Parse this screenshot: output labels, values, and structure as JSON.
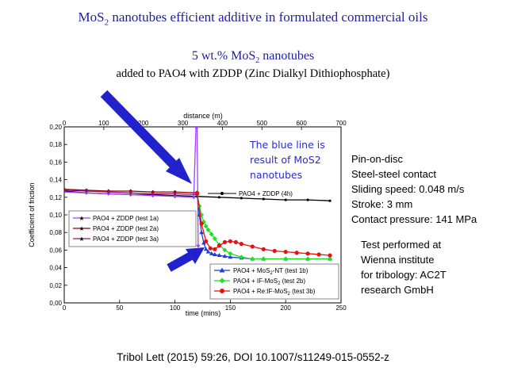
{
  "slide": {
    "title_prefix": "MoS",
    "title_sub": "2",
    "title_suffix": " nanotubes efficient additive in formulated commercial oils",
    "subtitle1_prefix": "5 wt.% MoS",
    "subtitle1_sub": "2",
    "subtitle1_suffix": " nanotubes",
    "subtitle2": "added to PAO4 with ZDDP (Zinc Dialkyl Dithiophosphate)",
    "conditions": [
      "Pin-on-disc",
      "Steel-steel contact",
      "Sliding speed: 0.048 m/s",
      "Stroke: 3 mm",
      "Contact pressure: 141 MPa"
    ],
    "institute": [
      "Test performed at",
      "Wienna institute",
      "for tribology: AC2T",
      "research GmbH"
    ],
    "citation": "Tribol Lett (2015) 59:26, DOI 10.1007/s11249-015-0552-z",
    "annotation": [
      "The blue line is",
      "result of MoS2",
      "nanotubes"
    ]
  },
  "colors": {
    "title": "#1f1f9a",
    "arrow": "#2222cc",
    "test1a": "#a040ff",
    "test2a": "#8b0000",
    "test3a": "#8b1a6b",
    "mos2_nt": "#1a3fd6",
    "if_mos2": "#22e022",
    "re_if_mos2": "#e81010",
    "pao4_zddp_4h": "#000000"
  },
  "chart_data": {
    "type": "line",
    "xlabel": "time (mins)",
    "x2label": "distance (m)",
    "ylabel": "Coefficient of friction",
    "xlim": [
      0,
      250
    ],
    "x2lim": [
      0,
      700
    ],
    "ylim": [
      0.0,
      0.2
    ],
    "x_ticks": [
      "0",
      "50",
      "100",
      "150",
      "200",
      "250"
    ],
    "x2_ticks": [
      "0",
      "100",
      "200",
      "300",
      "400",
      "500",
      "600",
      "700"
    ],
    "y_ticks": [
      "0,00",
      "0,02",
      "0,04",
      "0,06",
      "0,08",
      "0,10",
      "0,12",
      "0,14",
      "0,16",
      "0,18",
      "0,20"
    ],
    "legend_top": [
      {
        "name": "PAO4 + ZDDP (test 1a)",
        "key": "test1a"
      },
      {
        "name": "PAO4 + ZDDP (test 2a)",
        "key": "test2a"
      },
      {
        "name": "PAO4 + ZDDP (test 3a)",
        "key": "test3a"
      }
    ],
    "legend_4h": {
      "name": "PAO4 + ZDDP (4h)",
      "key": "pao4_zddp_4h"
    },
    "legend_bottom": [
      {
        "name_prefix": "PAO4 + MoS",
        "name_sub": "2",
        "name_suffix": "-NT (test 1b)",
        "key": "mos2_nt"
      },
      {
        "name_prefix": "PAO4 + IF-MoS",
        "name_sub": "2",
        "name_suffix": " (test 2b)",
        "key": "if_mos2"
      },
      {
        "name_prefix": "PAO4 + Re:IF-MoS",
        "name_sub": "2",
        "name_suffix": " (test 3b)",
        "key": "re_if_mos2"
      }
    ],
    "series": [
      {
        "name": "PAO4 + ZDDP (4h)",
        "key": "pao4_zddp_4h",
        "marker": "circle",
        "x": [
          0,
          20,
          40,
          60,
          80,
          100,
          120,
          140,
          160,
          180,
          200,
          220,
          240
        ],
        "y": [
          0.127,
          0.125,
          0.124,
          0.123,
          0.123,
          0.122,
          0.121,
          0.12,
          0.119,
          0.118,
          0.117,
          0.117,
          0.116
        ]
      },
      {
        "name": "PAO4 + ZDDP (test 1a)",
        "key": "test1a",
        "marker": "star",
        "x": [
          0,
          20,
          40,
          60,
          80,
          100,
          117,
          119,
          120,
          121
        ],
        "y": [
          0.126,
          0.125,
          0.124,
          0.123,
          0.122,
          0.121,
          0.12,
          0.2,
          0.2,
          0.065
        ]
      },
      {
        "name": "PAO4 + ZDDP (test 2a)",
        "key": "test2a",
        "marker": "star",
        "x": [
          0,
          20,
          40,
          60,
          80,
          100,
          120
        ],
        "y": [
          0.129,
          0.128,
          0.127,
          0.127,
          0.126,
          0.126,
          0.125
        ]
      },
      {
        "name": "PAO4 + ZDDP (test 3a)",
        "key": "test3a",
        "marker": "star",
        "x": [
          0,
          20,
          40,
          60,
          80,
          100,
          120
        ],
        "y": [
          0.128,
          0.127,
          0.126,
          0.125,
          0.124,
          0.124,
          0.123
        ]
      },
      {
        "name_prefix": "PAO4 + MoS",
        "name_sub": "2",
        "name_suffix": "-NT (test 1b)",
        "key": "mos2_nt",
        "marker": "triangle",
        "x": [
          120,
          122,
          124,
          126,
          128,
          130,
          133,
          136,
          140,
          145,
          150,
          160,
          170,
          180,
          200,
          220,
          240
        ],
        "y": [
          0.125,
          0.1,
          0.08,
          0.068,
          0.061,
          0.058,
          0.056,
          0.055,
          0.054,
          0.053,
          0.052,
          0.051,
          0.05,
          0.05,
          0.05,
          0.05,
          0.05
        ]
      },
      {
        "name_prefix": "PAO4 + IF-MoS",
        "name_sub": "2",
        "name_suffix": " (test 2b)",
        "key": "if_mos2",
        "marker": "diamond",
        "x": [
          120,
          122,
          124,
          126,
          128,
          130,
          133,
          136,
          140,
          145,
          150,
          160,
          170,
          180,
          200,
          220,
          240
        ],
        "y": [
          0.125,
          0.11,
          0.1,
          0.092,
          0.087,
          0.083,
          0.078,
          0.073,
          0.066,
          0.06,
          0.056,
          0.052,
          0.05,
          0.05,
          0.05,
          0.05,
          0.05
        ]
      },
      {
        "name_prefix": "PAO4 + Re:IF-MoS",
        "name_sub": "2",
        "name_suffix": " (test 3b)",
        "key": "re_if_mos2",
        "marker": "circle",
        "x": [
          120,
          124,
          128,
          132,
          136,
          140,
          145,
          150,
          155,
          160,
          170,
          180,
          190,
          200,
          210,
          220,
          230,
          240
        ],
        "y": [
          0.125,
          0.09,
          0.07,
          0.062,
          0.061,
          0.065,
          0.069,
          0.07,
          0.069,
          0.067,
          0.064,
          0.061,
          0.059,
          0.058,
          0.057,
          0.056,
          0.055,
          0.054
        ]
      }
    ]
  }
}
